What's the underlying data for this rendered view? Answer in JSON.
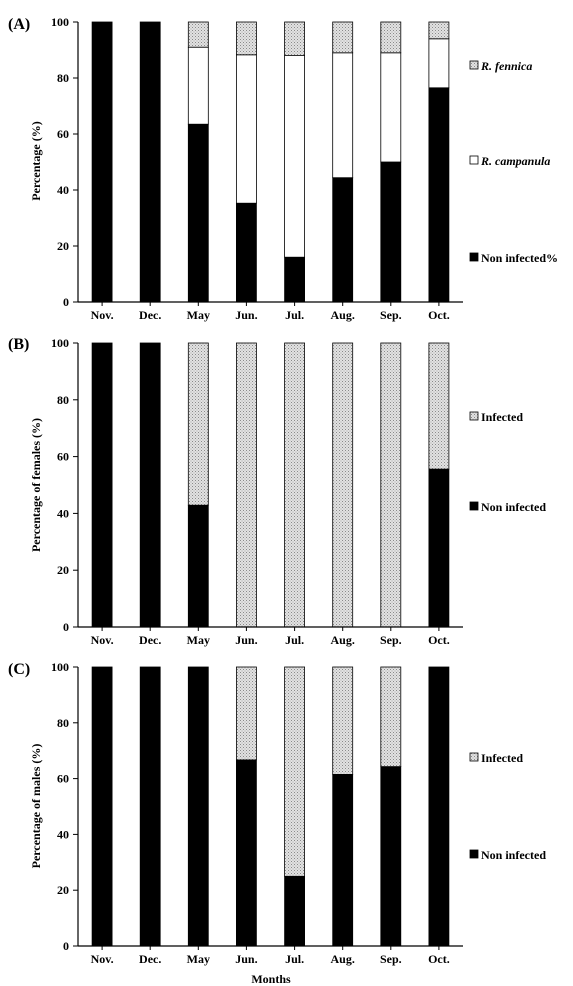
{
  "figure": {
    "xlabel": "Months",
    "colors": {
      "non_infected": "#000000",
      "campanula": "#ffffff",
      "fennica": "#d6d6d6",
      "infected": "#d6d6d6"
    },
    "fill_patterns": {
      "fennica": "dotted-gray",
      "infected": "dotted-gray"
    }
  },
  "chart_data": [
    {
      "panel_label": "(A)",
      "type": "bar",
      "stacked": true,
      "categories": [
        "Nov.",
        "Dec.",
        "May",
        "Jun.",
        "Jul.",
        "Aug.",
        "Sep.",
        "Oct."
      ],
      "ylabel": "Percentage (%)",
      "ylim": [
        0,
        100
      ],
      "yticks": [
        0,
        20,
        40,
        60,
        80,
        100
      ],
      "grid": false,
      "legend_position": "right",
      "series": [
        {
          "name": "Non infected%",
          "key": "non_infected",
          "values": [
            100,
            100,
            63.5,
            35.3,
            16,
            44.4,
            50,
            76.5
          ]
        },
        {
          "name": "R. campanula",
          "key": "campanula",
          "italic": true,
          "values": [
            0,
            0,
            27.5,
            53,
            72,
            44.6,
            39,
            17.5
          ]
        },
        {
          "name": "R. fennica",
          "key": "fennica",
          "italic": true,
          "values": [
            0,
            0,
            9,
            11.7,
            12,
            11,
            11,
            6
          ]
        }
      ]
    },
    {
      "panel_label": "(B)",
      "type": "bar",
      "stacked": true,
      "categories": [
        "Nov.",
        "Dec.",
        "May",
        "Jun.",
        "Jul.",
        "Aug.",
        "Sep.",
        "Oct."
      ],
      "ylabel": "Percentage of females (%)",
      "ylim": [
        0,
        100
      ],
      "yticks": [
        0,
        20,
        40,
        60,
        80,
        100
      ],
      "grid": false,
      "legend_position": "right",
      "series": [
        {
          "name": "Non infected",
          "key": "non_infected",
          "values": [
            100,
            100,
            42.9,
            0,
            0,
            0,
            0,
            55.6
          ]
        },
        {
          "name": "Infected",
          "key": "infected",
          "values": [
            0,
            0,
            57.1,
            100,
            100,
            100,
            100,
            44.4
          ]
        }
      ]
    },
    {
      "panel_label": "(C)",
      "type": "bar",
      "stacked": true,
      "categories": [
        "Nov.",
        "Dec.",
        "May",
        "Jun.",
        "Jul.",
        "Aug.",
        "Sep.",
        "Oct."
      ],
      "ylabel": "Percentage of males (%)",
      "ylim": [
        0,
        100
      ],
      "yticks": [
        0,
        20,
        40,
        60,
        80,
        100
      ],
      "grid": false,
      "legend_position": "right",
      "series": [
        {
          "name": "Non infected",
          "key": "non_infected",
          "values": [
            100,
            100,
            100,
            66.7,
            25,
            61.5,
            64.3,
            100
          ]
        },
        {
          "name": "Infected",
          "key": "infected",
          "values": [
            0,
            0,
            0,
            33.3,
            75,
            38.5,
            35.7,
            0
          ]
        }
      ]
    }
  ]
}
